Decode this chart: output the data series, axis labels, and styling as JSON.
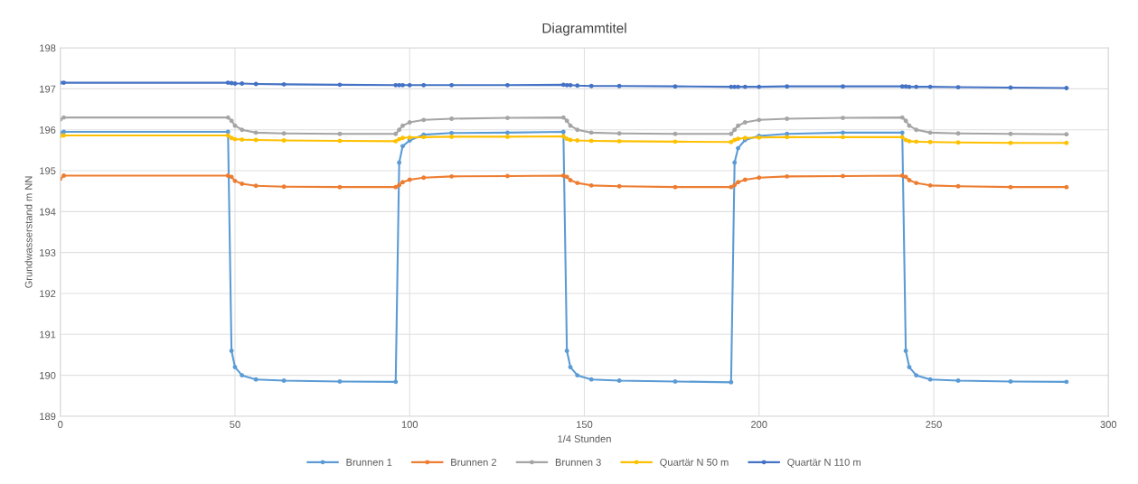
{
  "chart_data": {
    "type": "line",
    "title": "Diagrammtitel",
    "xlabel": "1/4 Stunden",
    "ylabel": "Grundwasserstand m NN",
    "x": [
      0,
      1,
      48,
      49,
      50,
      52,
      56,
      64,
      80,
      96,
      97,
      98,
      100,
      104,
      112,
      128,
      144,
      145,
      146,
      148,
      152,
      160,
      176,
      192,
      193,
      194,
      196,
      200,
      208,
      224,
      241,
      242,
      243,
      245,
      249,
      257,
      272,
      288
    ],
    "series": [
      {
        "name": "Brunnen 1",
        "color": "#5b9bd5",
        "values": [
          195.93,
          195.95,
          195.95,
          190.6,
          190.2,
          190.0,
          189.9,
          189.87,
          189.85,
          189.84,
          195.2,
          195.6,
          195.74,
          195.88,
          195.92,
          195.93,
          195.95,
          190.6,
          190.2,
          190.0,
          189.9,
          189.87,
          189.85,
          189.83,
          195.2,
          195.55,
          195.75,
          195.85,
          195.9,
          195.93,
          195.93,
          190.6,
          190.2,
          190.0,
          189.9,
          189.87,
          189.85,
          189.84
        ]
      },
      {
        "name": "Brunnen 2",
        "color": "#ed7d31",
        "values": [
          194.8,
          194.88,
          194.88,
          194.85,
          194.75,
          194.68,
          194.63,
          194.61,
          194.6,
          194.6,
          194.65,
          194.72,
          194.78,
          194.83,
          194.86,
          194.87,
          194.88,
          194.85,
          194.77,
          194.7,
          194.64,
          194.62,
          194.6,
          194.6,
          194.65,
          194.72,
          194.78,
          194.83,
          194.86,
          194.87,
          194.88,
          194.85,
          194.77,
          194.7,
          194.64,
          194.62,
          194.6,
          194.6
        ]
      },
      {
        "name": "Brunnen 3",
        "color": "#a5a5a5",
        "values": [
          196.25,
          196.3,
          196.3,
          196.22,
          196.1,
          196.0,
          195.93,
          195.91,
          195.9,
          195.9,
          196.0,
          196.1,
          196.18,
          196.24,
          196.27,
          196.29,
          196.3,
          196.22,
          196.1,
          196.0,
          195.93,
          195.91,
          195.9,
          195.9,
          196.0,
          196.1,
          196.18,
          196.24,
          196.27,
          196.29,
          196.3,
          196.22,
          196.1,
          196.0,
          195.93,
          195.91,
          195.9,
          195.89
        ]
      },
      {
        "name": "Quartär N 50 m",
        "color": "#ffc000",
        "values": [
          195.85,
          195.86,
          195.86,
          195.8,
          195.77,
          195.76,
          195.75,
          195.74,
          195.73,
          195.72,
          195.77,
          195.8,
          195.81,
          195.82,
          195.83,
          195.83,
          195.84,
          195.78,
          195.75,
          195.74,
          195.73,
          195.72,
          195.71,
          195.7,
          195.75,
          195.78,
          195.8,
          195.81,
          195.82,
          195.82,
          195.82,
          195.75,
          195.72,
          195.71,
          195.7,
          195.69,
          195.68,
          195.68
        ]
      },
      {
        "name": "Quartär N 110 m",
        "color": "#4472c4",
        "values": [
          197.15,
          197.15,
          197.15,
          197.14,
          197.13,
          197.13,
          197.12,
          197.11,
          197.1,
          197.09,
          197.09,
          197.09,
          197.09,
          197.09,
          197.09,
          197.09,
          197.1,
          197.09,
          197.09,
          197.08,
          197.07,
          197.07,
          197.06,
          197.05,
          197.05,
          197.05,
          197.05,
          197.05,
          197.06,
          197.06,
          197.06,
          197.06,
          197.05,
          197.05,
          197.05,
          197.04,
          197.03,
          197.02
        ]
      }
    ],
    "xlim": [
      0,
      300
    ],
    "xticks": [
      0,
      50,
      100,
      150,
      200,
      250,
      300
    ],
    "ylim": [
      189,
      198
    ],
    "yticks": [
      189,
      190,
      191,
      192,
      193,
      194,
      195,
      196,
      197,
      198
    ],
    "grid": true,
    "legend": "bottom",
    "marker": "circle",
    "line_style": "solid"
  }
}
